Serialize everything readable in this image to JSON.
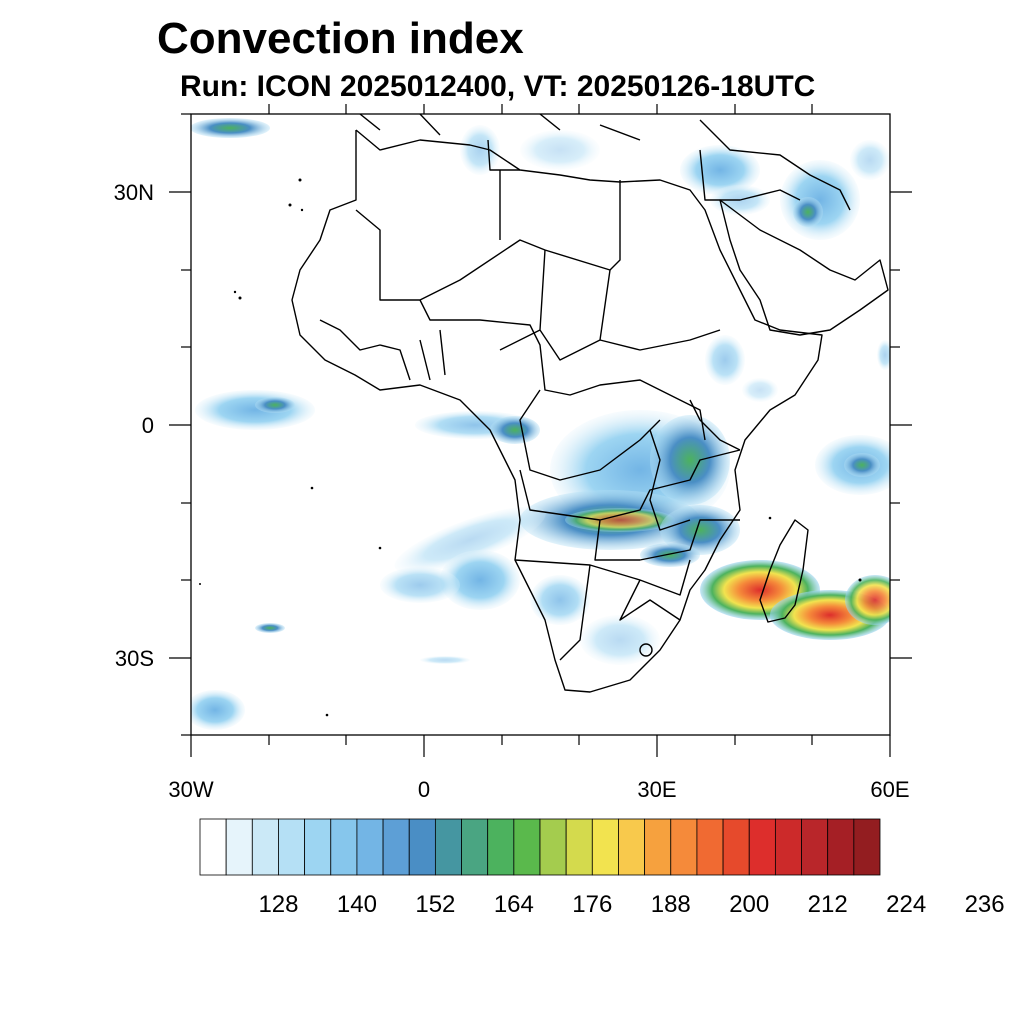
{
  "title": "Convection index",
  "subtitle": "Run: ICON 2025012400,  VT: 20250126-18UTC",
  "map": {
    "lon_range": [
      -30,
      60
    ],
    "lat_range": [
      -40,
      40
    ],
    "x_tick_labels": [
      "30W",
      "0",
      "30E",
      "60E"
    ],
    "y_tick_labels": [
      "30N",
      "0",
      "30S"
    ]
  },
  "colorbar": {
    "colors": [
      "#ffffff",
      "#e6f4fb",
      "#cbe9f7",
      "#b5e0f5",
      "#9dd5f2",
      "#86c6ec",
      "#73b5e5",
      "#5d9fd6",
      "#4a8ec5",
      "#4596a1",
      "#4aa582",
      "#4cb25e",
      "#5ab94c",
      "#a4cc4e",
      "#d4da4d",
      "#f2e34f",
      "#f8c94c",
      "#f6a13e",
      "#f58a3a",
      "#f06a32",
      "#e64a2c",
      "#dd2e2c",
      "#cc2a2a",
      "#b9262a",
      "#a51f25",
      "#931d20"
    ],
    "labels": [
      "128",
      "140",
      "152",
      "164",
      "176",
      "188",
      "200",
      "212",
      "224",
      "236"
    ]
  }
}
